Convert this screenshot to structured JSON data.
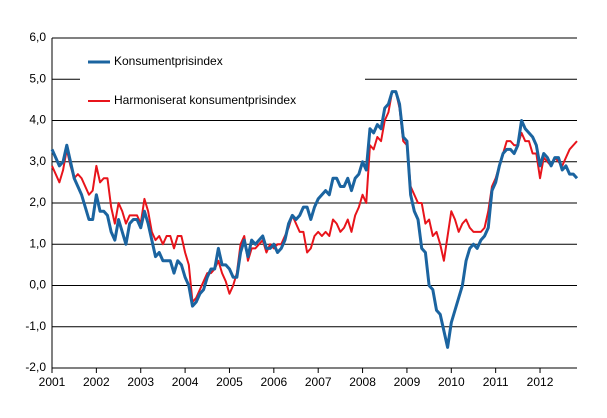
{
  "chart_data": {
    "type": "line",
    "categories": [
      "2001",
      null,
      null,
      null,
      null,
      null,
      null,
      null,
      null,
      null,
      null,
      null,
      "2002",
      null,
      null,
      null,
      null,
      null,
      null,
      null,
      null,
      null,
      null,
      null,
      "2003",
      null,
      null,
      null,
      null,
      null,
      null,
      null,
      null,
      null,
      null,
      null,
      "2004",
      null,
      null,
      null,
      null,
      null,
      null,
      null,
      null,
      null,
      null,
      null,
      "2005",
      null,
      null,
      null,
      null,
      null,
      null,
      null,
      null,
      null,
      null,
      null,
      "2006",
      null,
      null,
      null,
      null,
      null,
      null,
      null,
      null,
      null,
      null,
      null,
      "2007",
      null,
      null,
      null,
      null,
      null,
      null,
      null,
      null,
      null,
      null,
      null,
      "2008",
      null,
      null,
      null,
      null,
      null,
      null,
      null,
      null,
      null,
      null,
      null,
      "2009",
      null,
      null,
      null,
      null,
      null,
      null,
      null,
      null,
      null,
      null,
      null,
      "2010",
      null,
      null,
      null,
      null,
      null,
      null,
      null,
      null,
      null,
      null,
      null,
      "2011",
      null,
      null,
      null,
      null,
      null,
      null,
      null,
      null,
      null,
      null,
      null,
      "2012",
      null,
      null,
      null,
      null,
      null,
      null,
      null,
      null,
      null,
      null
    ],
    "series": [
      {
        "name": "Konsumentprisindex",
        "color": "#1b64a0",
        "values": [
          3.3,
          3.1,
          2.9,
          3.0,
          3.4,
          3.0,
          2.6,
          2.4,
          2.2,
          1.9,
          1.6,
          1.6,
          2.2,
          1.8,
          1.8,
          1.7,
          1.3,
          1.1,
          1.6,
          1.3,
          1.0,
          1.5,
          1.6,
          1.6,
          1.4,
          1.8,
          1.5,
          1.1,
          0.7,
          0.8,
          0.6,
          0.6,
          0.6,
          0.3,
          0.6,
          0.5,
          0.2,
          0.0,
          -0.5,
          -0.4,
          -0.2,
          -0.1,
          0.2,
          0.4,
          0.4,
          0.9,
          0.5,
          0.5,
          0.4,
          0.2,
          0.2,
          0.8,
          1.1,
          0.7,
          1.1,
          1.0,
          1.1,
          1.2,
          0.9,
          0.9,
          1.0,
          0.8,
          0.9,
          1.1,
          1.5,
          1.7,
          1.6,
          1.7,
          1.9,
          1.9,
          1.6,
          1.9,
          2.1,
          2.2,
          2.3,
          2.2,
          2.6,
          2.6,
          2.4,
          2.4,
          2.6,
          2.3,
          2.6,
          2.7,
          3.0,
          2.8,
          3.8,
          3.7,
          3.9,
          3.8,
          4.3,
          4.4,
          4.7,
          4.7,
          4.4,
          3.6,
          3.5,
          2.2,
          1.8,
          1.6,
          0.9,
          0.8,
          0.0,
          -0.1,
          -0.6,
          -0.7,
          -1.1,
          -1.5,
          -0.9,
          -0.6,
          -0.3,
          0.0,
          0.6,
          0.9,
          1.0,
          0.9,
          1.1,
          1.2,
          1.4,
          2.3,
          2.5,
          2.9,
          3.2,
          3.3,
          3.3,
          3.2,
          3.4,
          4.0,
          3.8,
          3.7,
          3.6,
          3.4,
          2.9,
          3.2,
          3.1,
          2.9,
          3.1,
          3.1,
          2.8,
          2.9,
          2.7,
          2.7,
          2.6
        ]
      },
      {
        "name": "Harmoniserat konsumentprisindex",
        "color": "#e8141b",
        "values": [
          2.9,
          2.7,
          2.5,
          2.8,
          3.3,
          2.9,
          2.6,
          2.7,
          2.6,
          2.4,
          2.2,
          2.3,
          2.9,
          2.5,
          2.6,
          2.6,
          1.9,
          1.5,
          2.0,
          1.8,
          1.5,
          1.7,
          1.7,
          1.7,
          1.5,
          2.1,
          1.8,
          1.3,
          1.1,
          1.2,
          1.0,
          1.2,
          1.2,
          0.9,
          1.2,
          1.2,
          0.8,
          0.5,
          -0.4,
          -0.3,
          -0.1,
          0.1,
          0.3,
          0.3,
          0.4,
          0.6,
          0.3,
          0.1,
          -0.2,
          0.0,
          0.3,
          1.0,
          1.2,
          0.6,
          0.9,
          0.9,
          1.0,
          1.1,
          0.8,
          1.0,
          0.9,
          1.0,
          1.0,
          1.2,
          1.4,
          1.7,
          1.5,
          1.3,
          1.3,
          0.8,
          0.9,
          1.2,
          1.3,
          1.2,
          1.3,
          1.2,
          1.6,
          1.5,
          1.3,
          1.4,
          1.6,
          1.3,
          1.7,
          1.9,
          2.2,
          2.0,
          3.4,
          3.3,
          3.6,
          3.5,
          4.0,
          4.2,
          4.7,
          4.7,
          4.3,
          3.5,
          3.4,
          2.4,
          2.2,
          2.0,
          2.0,
          1.5,
          1.6,
          1.2,
          1.3,
          1.0,
          0.6,
          1.2,
          1.8,
          1.6,
          1.3,
          1.5,
          1.6,
          1.4,
          1.3,
          1.3,
          1.3,
          1.4,
          1.8,
          2.4,
          2.6,
          2.9,
          3.2,
          3.5,
          3.5,
          3.4,
          3.4,
          3.7,
          3.5,
          3.5,
          3.2,
          3.2,
          2.6,
          3.1,
          3.0,
          2.9,
          3.1,
          3.0,
          2.9,
          3.1,
          3.3,
          3.4,
          3.5
        ]
      }
    ],
    "ylim": [
      -2,
      6
    ],
    "yticks": [
      {
        "value": -2,
        "label": "-2,0"
      },
      {
        "value": -1,
        "label": "-1,0"
      },
      {
        "value": 0,
        "label": "0,0"
      },
      {
        "value": 1,
        "label": "1,0"
      },
      {
        "value": 2,
        "label": "2,0"
      },
      {
        "value": 3,
        "label": "3,0"
      },
      {
        "value": 4,
        "label": "4,0"
      },
      {
        "value": 5,
        "label": "5,0"
      },
      {
        "value": 6,
        "label": "6,0"
      }
    ],
    "grid": true
  }
}
